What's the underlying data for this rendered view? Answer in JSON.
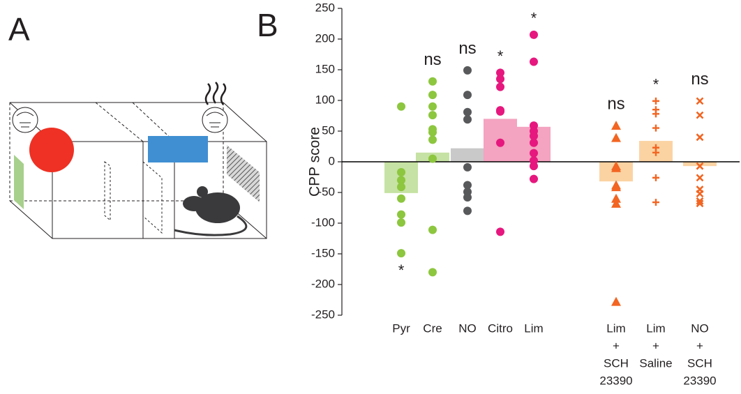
{
  "panel_labels": {
    "a": "A",
    "b": "B"
  },
  "chart_data": {
    "type": "dot-bar",
    "y_label": "CPP score",
    "ylim": [
      -250,
      250
    ],
    "yticks": [
      -250,
      -200,
      -150,
      -100,
      -50,
      0,
      50,
      100,
      150,
      200,
      250
    ],
    "groups": [
      {
        "category": [
          "Pyr"
        ],
        "mean": -51,
        "marker": "circle",
        "color": "#8dc63f",
        "bar_color": "#c6e2a4",
        "significance": "*",
        "significance_position": "below",
        "points": [
          90,
          -17,
          -30,
          -41,
          -60,
          -86,
          -99,
          -149
        ]
      },
      {
        "category": [
          "Cre"
        ],
        "mean": 15,
        "marker": "circle",
        "color": "#8dc63f",
        "bar_color": "#c6e2a4",
        "significance": "ns",
        "significance_position": "above",
        "points": [
          131,
          109,
          90,
          76,
          53,
          48,
          36,
          5,
          -111,
          -180
        ]
      },
      {
        "category": [
          "NO"
        ],
        "mean": 22,
        "marker": "circle",
        "color": "#58595b",
        "bar_color": "#c9c9ca",
        "significance": "ns",
        "significance_position": "above",
        "points": [
          149,
          109,
          81,
          69,
          -9,
          -38,
          -49,
          -58,
          -80
        ]
      },
      {
        "category": [
          "Citro"
        ],
        "mean": 70,
        "marker": "circle",
        "color": "#e6177e",
        "bar_color": "#f4a3c0",
        "significance": "*",
        "significance_position": "above",
        "points": [
          145,
          135,
          122,
          84,
          82,
          31,
          -114
        ]
      },
      {
        "category": [
          "Lim"
        ],
        "mean": 57,
        "marker": "circle",
        "color": "#e6177e",
        "bar_color": "#f4a3c0",
        "significance": "*",
        "significance_position": "above",
        "points": [
          207,
          163,
          59,
          50,
          42,
          31,
          14,
          2,
          -7,
          -28
        ]
      },
      {
        "category": [
          "Lim",
          "+",
          "SCH",
          "23390"
        ],
        "mean": -32,
        "marker": "triangle",
        "color": "#f26522",
        "bar_color": "#fbd3a3",
        "significance": "ns",
        "significance_position": "above",
        "points": [
          59,
          39,
          -7,
          -10,
          -38,
          -41,
          -60,
          -68,
          -228
        ]
      },
      {
        "category": [
          "Lim",
          "+",
          "Saline"
        ],
        "mean": 34,
        "marker": "plus",
        "color": "#f26522",
        "bar_color": "#fbd3a3",
        "significance": "*",
        "significance_position": "above",
        "points": [
          99,
          85,
          78,
          55,
          23,
          15,
          -26,
          -66
        ]
      },
      {
        "category": [
          "NO",
          "+",
          "SCH",
          "23390"
        ],
        "mean": -7,
        "marker": "cross",
        "color": "#f26522",
        "bar_color": "#fbd3a3",
        "significance": "ns",
        "significance_position": "above",
        "points": [
          99,
          76,
          40,
          -7,
          -26,
          -45,
          -52,
          -64,
          -68
        ]
      }
    ]
  }
}
